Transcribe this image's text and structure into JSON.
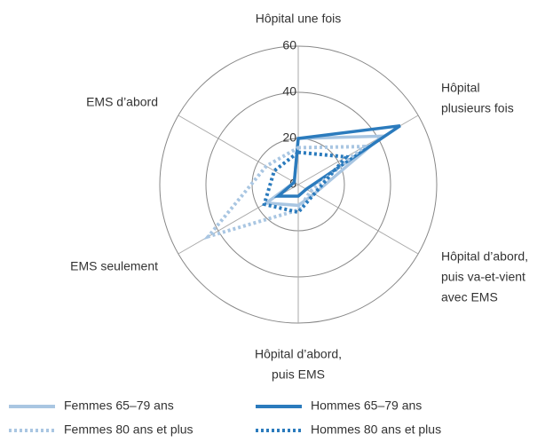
{
  "chart_data": {
    "type": "radar",
    "categories": [
      [
        "Hôpital une fois"
      ],
      [
        "Hôpital",
        "plusieurs fois"
      ],
      [
        "Hôpital d’abord,",
        "puis va-et-vient",
        "avec EMS"
      ],
      [
        "Hôpital d’abord,",
        "puis EMS"
      ],
      [
        "EMS seulement"
      ],
      [
        "EMS d’abord"
      ]
    ],
    "rlim": [
      0,
      60
    ],
    "rticks": [
      0,
      20,
      40,
      60
    ],
    "series": [
      {
        "name": "Femmes 65–79 ans",
        "color": "#a9c6e2",
        "dash": false,
        "values": [
          20,
          42,
          8,
          9,
          16,
          2
        ]
      },
      {
        "name": "Hommes 65–79 ans",
        "color": "#2b7bbd",
        "dash": false,
        "values": [
          20,
          51,
          4,
          5,
          10,
          2
        ]
      },
      {
        "name": "Femmes 80 ans et plus",
        "color": "#a9c6e2",
        "dash": true,
        "values": [
          16,
          33,
          6,
          11,
          45,
          16
        ]
      },
      {
        "name": "Hommes 80 ans et plus",
        "color": "#2b7bbd",
        "dash": true,
        "values": [
          14,
          24,
          8,
          12,
          17,
          12
        ]
      }
    ]
  }
}
